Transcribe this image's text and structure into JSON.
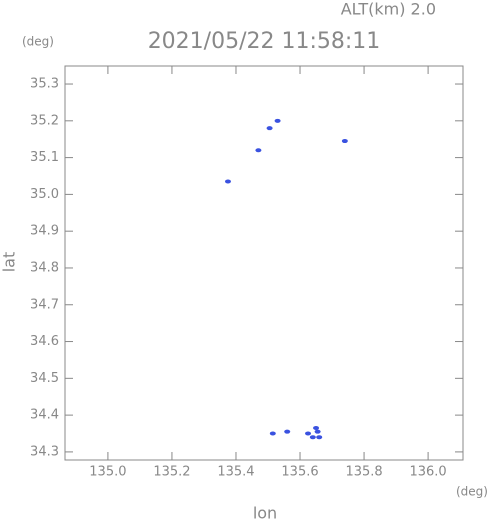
{
  "chart_data": {
    "type": "scatter",
    "title": "2021/05/22 11:58:11",
    "subtitle": "ALT(km) 2.0",
    "x_label": "lon",
    "y_label": "lat",
    "x_unit": "(deg)",
    "y_unit": "(deg)",
    "x": [
      135.375,
      135.47,
      135.505,
      135.53,
      135.74,
      135.515,
      135.56,
      135.625,
      135.64,
      135.655,
      135.65,
      135.66
    ],
    "y": [
      35.035,
      35.12,
      35.18,
      35.2,
      35.145,
      34.35,
      34.355,
      34.35,
      34.34,
      34.355,
      34.365,
      34.34
    ],
    "color": "#3a52e0",
    "xlim": [
      134.866,
      136.109
    ],
    "ylim": [
      34.278,
      35.349
    ],
    "xticks": [
      {
        "value": 135.0,
        "label": "135.0"
      },
      135.2,
      135.4,
      135.6,
      135.8,
      {
        "value": 136.0,
        "label": "136.0"
      }
    ],
    "yticks": [
      34.3,
      34.4,
      34.5,
      34.6,
      34.7,
      34.8,
      34.9,
      {
        "value": 35.0,
        "label": "35.0"
      },
      35.1,
      35.2,
      35.3
    ]
  }
}
